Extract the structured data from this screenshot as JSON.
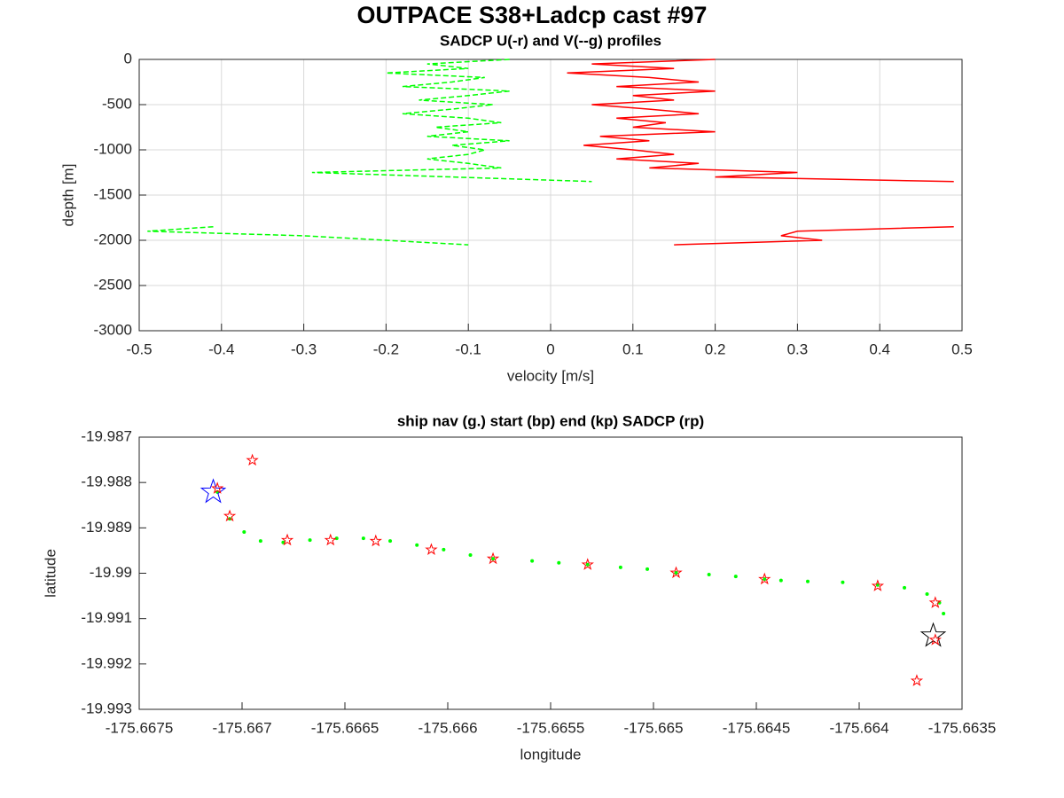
{
  "title": "OUTPACE S38+Ladcp cast #97",
  "chart_data": [
    {
      "type": "line",
      "title": "SADCP U(-r) and V(--g) profiles",
      "xlabel": "velocity [m/s]",
      "ylabel": "depth [m]",
      "xlim": [
        -0.5,
        0.5
      ],
      "xticks": [
        -0.5,
        -0.4,
        -0.3,
        -0.2,
        -0.1,
        0,
        0.1,
        0.2,
        0.3,
        0.4,
        0.5
      ],
      "ylim": [
        -3000,
        0
      ],
      "yticks": [
        -3000,
        -2500,
        -2000,
        -1500,
        -1000,
        -500,
        0
      ],
      "grid": true,
      "y": [
        0,
        -50,
        -100,
        -150,
        -200,
        -250,
        -300,
        -350,
        -400,
        -450,
        -500,
        -550,
        -600,
        -650,
        -700,
        -750,
        -800,
        -850,
        -900,
        -950,
        -1000,
        -1050,
        -1100,
        -1150,
        -1200,
        -1250,
        -1300,
        -1350,
        -1400,
        -1450,
        -1500,
        -1550,
        -1600,
        -1650,
        -1700,
        -1750,
        -1800,
        -1850,
        -1900,
        -1950,
        -2000,
        -2050
      ],
      "series": [
        {
          "name": "U",
          "color": "#ff0000",
          "dash": "solid",
          "values": [
            0.2,
            0.05,
            0.15,
            0.02,
            0.12,
            0.18,
            0.08,
            0.2,
            0.1,
            0.15,
            0.05,
            0.12,
            0.18,
            0.08,
            0.14,
            0.1,
            0.2,
            0.06,
            0.12,
            0.04,
            0.1,
            0.15,
            0.08,
            0.18,
            0.12,
            0.3,
            0.2,
            0.49,
            null,
            null,
            null,
            null,
            null,
            null,
            null,
            null,
            null,
            0.49,
            0.3,
            0.28,
            0.33,
            0.15
          ]
        },
        {
          "name": "V",
          "color": "#00ff00",
          "dash": "dashed",
          "values": [
            -0.05,
            -0.15,
            -0.1,
            -0.2,
            -0.08,
            -0.12,
            -0.18,
            -0.05,
            -0.1,
            -0.16,
            -0.07,
            -0.12,
            -0.18,
            -0.1,
            -0.06,
            -0.14,
            -0.1,
            -0.15,
            -0.05,
            -0.12,
            -0.08,
            -0.1,
            -0.15,
            -0.1,
            -0.06,
            -0.29,
            -0.12,
            0.05,
            null,
            null,
            null,
            null,
            null,
            null,
            null,
            null,
            null,
            -0.41,
            -0.49,
            -0.3,
            -0.2,
            -0.1
          ]
        }
      ]
    },
    {
      "type": "scatter",
      "title": "ship nav (g.) start (bp) end (kp) SADCP (rp)",
      "xlabel": "longitude",
      "ylabel": "latitude",
      "xlim": [
        -175.6675,
        -175.6635
      ],
      "xticks": [
        -175.6675,
        -175.667,
        -175.6665,
        -175.666,
        -175.6655,
        -175.665,
        -175.6645,
        -175.664,
        -175.6635
      ],
      "ylim": [
        -19.993,
        -19.987
      ],
      "yticks": [
        -19.993,
        -19.992,
        -19.991,
        -19.99,
        -19.989,
        -19.988,
        -19.987
      ],
      "grid": false,
      "series": [
        {
          "name": "ship nav",
          "color": "#00ff00",
          "marker": "dot",
          "x": [
            -175.66712,
            -175.66706,
            -175.66699,
            -175.66691,
            -175.6668,
            -175.66667,
            -175.66654,
            -175.66641,
            -175.66628,
            -175.66615,
            -175.66602,
            -175.66589,
            -175.66578,
            -175.66559,
            -175.66546,
            -175.66532,
            -175.66516,
            -175.66503,
            -175.66489,
            -175.66473,
            -175.6646,
            -175.66446,
            -175.66438,
            -175.66425,
            -175.66408,
            -175.66391,
            -175.66378,
            -175.66367,
            -175.66361,
            -175.66359
          ],
          "y": [
            -19.98821,
            -19.9888,
            -19.98909,
            -19.98929,
            -19.98932,
            -19.98927,
            -19.98923,
            -19.98923,
            -19.98929,
            -19.98938,
            -19.98948,
            -19.9896,
            -19.98968,
            -19.98973,
            -19.98977,
            -19.98981,
            -19.98987,
            -19.98991,
            -19.98999,
            -19.99003,
            -19.99007,
            -19.99013,
            -19.99016,
            -19.99018,
            -19.9902,
            -19.99026,
            -19.99032,
            -19.99046,
            -19.99065,
            -19.99089
          ]
        },
        {
          "name": "start",
          "color": "#0000ff",
          "marker": "star",
          "x": [
            -175.66714
          ],
          "y": [
            -19.98821
          ]
        },
        {
          "name": "end",
          "color": "#000000",
          "marker": "star",
          "x": [
            -175.66364
          ],
          "y": [
            -19.99138
          ]
        },
        {
          "name": "SADCP",
          "color": "#ff0000",
          "marker": "star",
          "x": [
            -175.66712,
            -175.66706,
            -175.66695,
            -175.66678,
            -175.66657,
            -175.66635,
            -175.66608,
            -175.66578,
            -175.66532,
            -175.66489,
            -175.66446,
            -175.66391,
            -175.66363,
            -175.66363,
            -175.66372
          ],
          "y": [
            -19.98813,
            -19.98874,
            -19.98751,
            -19.98927,
            -19.98927,
            -19.98929,
            -19.98948,
            -19.98968,
            -19.98981,
            -19.98999,
            -19.99013,
            -19.99028,
            -19.99065,
            -19.99147,
            -19.99237
          ]
        }
      ]
    }
  ]
}
